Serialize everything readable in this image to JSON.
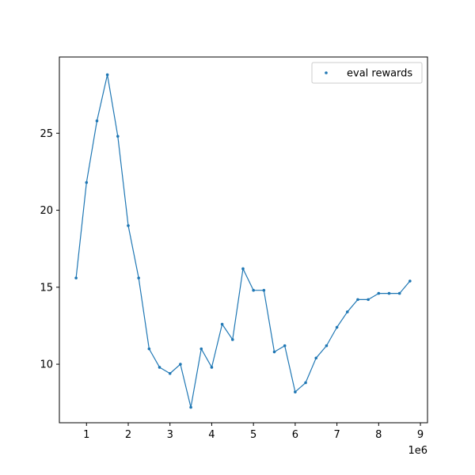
{
  "chart_data": {
    "type": "line",
    "title": "",
    "xlabel": "",
    "ylabel": "",
    "x_offset_label": "1e6",
    "x_scale": 1000000,
    "xlim": [
      0.35,
      9.17
    ],
    "ylim": [
      6.2,
      29.95
    ],
    "x_ticks": [
      1,
      2,
      3,
      4,
      5,
      6,
      7,
      8,
      9
    ],
    "x_tick_labels": [
      "1",
      "2",
      "3",
      "4",
      "5",
      "6",
      "7",
      "8",
      "9"
    ],
    "y_ticks": [
      10,
      15,
      20,
      25
    ],
    "y_tick_labels": [
      "10",
      "15",
      "20",
      "25"
    ],
    "grid": false,
    "legend": {
      "position": "top-right",
      "entries": [
        "eval rewards"
      ]
    },
    "series": [
      {
        "name": "eval rewards",
        "color": "#1f77b4",
        "marker": "point",
        "x": [
          0.75,
          1.0,
          1.25,
          1.5,
          1.75,
          2.0,
          2.25,
          2.5,
          2.75,
          3.0,
          3.25,
          3.5,
          3.75,
          4.0,
          4.25,
          4.5,
          4.75,
          5.0,
          5.25,
          5.5,
          5.75,
          6.0,
          6.25,
          6.5,
          6.75,
          7.0,
          7.25,
          7.5,
          7.75,
          8.0,
          8.25,
          8.5,
          8.75
        ],
        "y": [
          15.6,
          21.8,
          25.8,
          28.8,
          24.8,
          19.0,
          15.6,
          11.0,
          9.8,
          9.4,
          10.0,
          7.2,
          11.0,
          9.8,
          12.6,
          11.6,
          16.2,
          14.8,
          14.8,
          10.8,
          11.2,
          8.2,
          8.8,
          10.4,
          11.2,
          12.4,
          13.4,
          14.2,
          14.2,
          14.6,
          14.6,
          14.6,
          15.4
        ]
      }
    ]
  }
}
